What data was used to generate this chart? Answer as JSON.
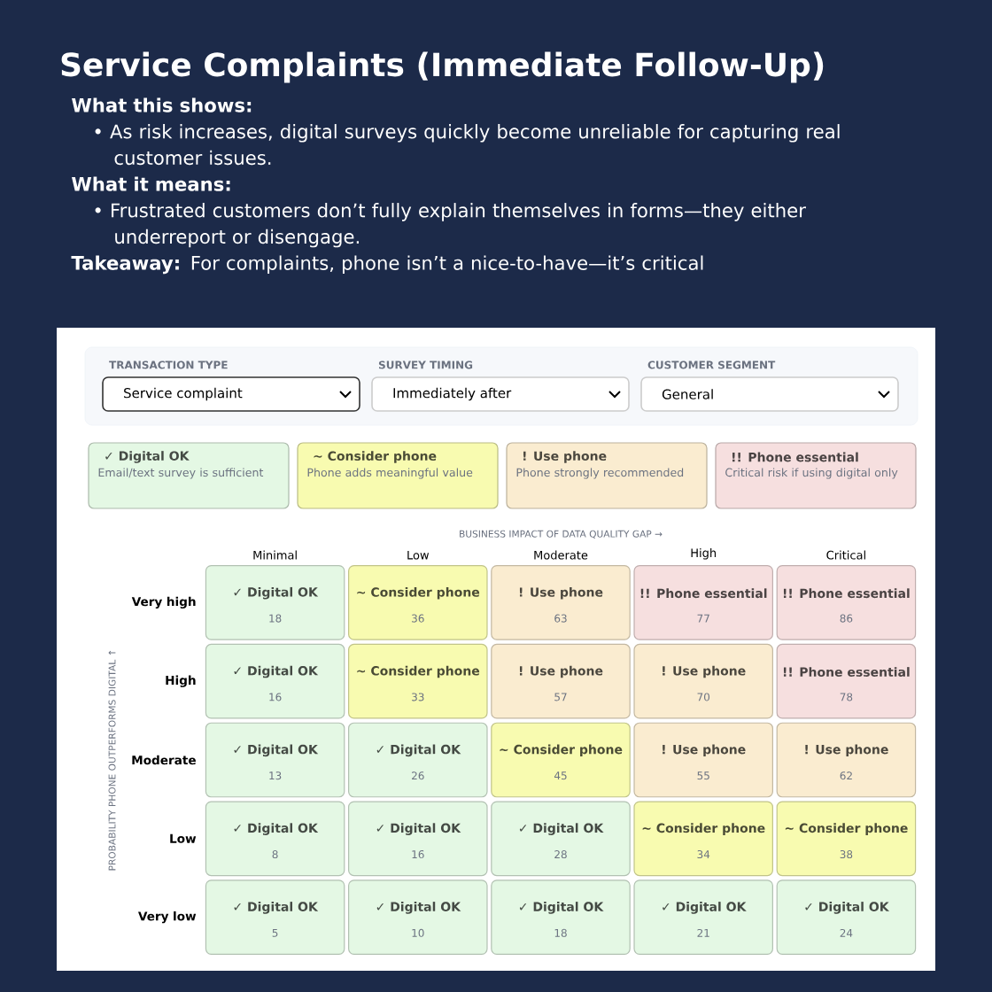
{
  "chart_data": {
    "type": "heatmap",
    "title": "Service Complaints (Immediate Follow-Up)",
    "xlabel": "BUSINESS IMPACT OF DATA QUALITY GAP →",
    "ylabel": "PROBABILITY PHONE OUTPERFORMS DIGITAL ↑",
    "categories": [
      "Minimal",
      "Low",
      "Moderate",
      "High",
      "Critical"
    ],
    "y_categories": [
      "Very high",
      "High",
      "Moderate",
      "Low",
      "Very low"
    ],
    "cells": [
      [
        18,
        36,
        63,
        77,
        86
      ],
      [
        16,
        33,
        57,
        70,
        78
      ],
      [
        13,
        26,
        45,
        55,
        62
      ],
      [
        8,
        16,
        28,
        34,
        38
      ],
      [
        5,
        10,
        18,
        21,
        24
      ]
    ],
    "colors": [
      [
        "#e4f8e4",
        "#f8fbb0",
        "#faecd0",
        "#f6dfdf",
        "#f6dfdf"
      ],
      [
        "#e4f8e4",
        "#f8fbb0",
        "#faecd0",
        "#faecd0",
        "#f6dfdf"
      ],
      [
        "#e4f8e4",
        "#e4f8e4",
        "#f8fbb0",
        "#faecd0",
        "#faecd0"
      ],
      [
        "#e4f8e4",
        "#e4f8e4",
        "#e4f8e4",
        "#f8fbb0",
        "#f8fbb0"
      ],
      [
        "#e4f8e4",
        "#e4f8e4",
        "#e4f8e4",
        "#e4f8e4",
        "#e4f8e4"
      ]
    ],
    "data_labels": true,
    "annotations": [
      "What this shows:",
      "• As risk increases, digital surveys quickly become unreliable for capturing real customer issues.",
      "What it means:",
      "• Frustrated customers don’t fully explain themselves in forms—they either underreport or disengage.",
      "**Takeaway:** For complaints, phone isn’t a nice-to-have—it’s critical",
      "TRANSACTION TYPE",
      "Service complaint",
      "SURVEY TIMING",
      "Immediately after",
      "CUSTOMER SEGMENT",
      "General",
      "Email/text survey is sufficient",
      "Phone adds meaningful value",
      "Phone strongly recommended",
      "Critical risk if using digital only",
      "✓ Digital OK",
      "~ Consider phone",
      "! Use phone",
      "!! Phone essential",
      "✓ Digital OK",
      "~ Consider phone",
      "! Use phone",
      "!! Phone essential",
      "!! Phone essential",
      "✓ Digital OK",
      "~ Consider phone",
      "! Use phone",
      "! Use phone",
      "!! Phone essential",
      "✓ Digital OK",
      "✓ Digital OK",
      "~ Consider phone",
      "! Use phone",
      "! Use phone",
      "✓ Digital OK",
      "✓ Digital OK",
      "✓ Digital OK",
      "~ Consider phone",
      "~ Consider phone",
      "✓ Digital OK",
      "✓ Digital OK",
      "✓ Digital OK",
      "✓ Digital OK",
      "✓ Digital OK"
    ]
  }
}
